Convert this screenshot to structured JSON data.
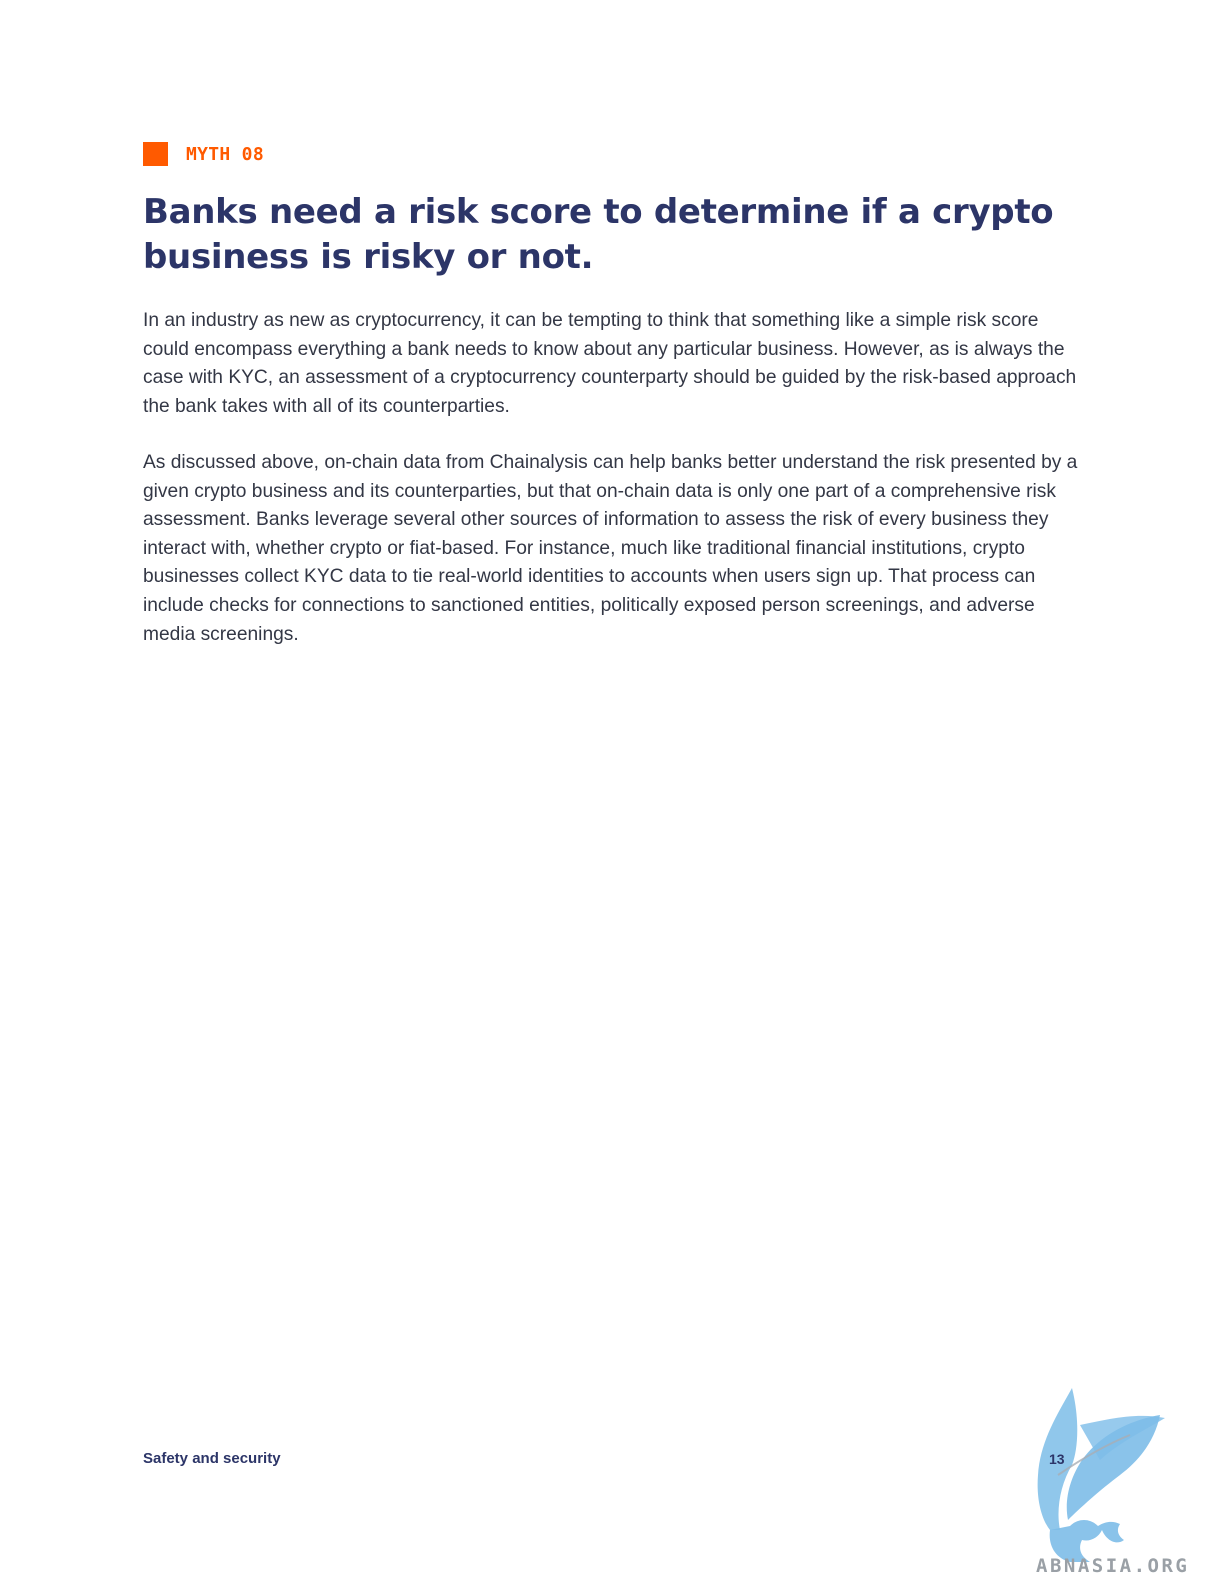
{
  "header": {
    "tag_label": "MYTH 08",
    "title": "Banks need a risk score to determine if a crypto business is risky or not."
  },
  "content": {
    "paragraphs": [
      "In an industry as new as cryptocurrency, it can be tempting to think that something like a simple risk score could encompass everything a bank needs to know about any particular business. However, as is always the case with KYC, an assessment of a cryptocurrency counterparty should be guided by the risk-based approach the bank takes with all of its counterparties.",
      "As discussed above, on-chain data from Chainalysis can help banks better understand the risk presented by a given crypto business and its counterparties, but that on-chain data is only one part of a comprehensive risk assessment. Banks leverage several other sources of information to assess the risk of every business they interact with, whether crypto or fiat-based. For instance, much like traditional financial institutions, crypto businesses collect KYC data to tie real-world identities to accounts when users sign up. That process can include checks for connections to sanctioned entities, politically exposed person screenings, and adverse media screenings."
    ]
  },
  "footer": {
    "section": "Safety and security",
    "page_number": "13"
  },
  "watermark": {
    "text": "ABNASIA.ORG",
    "icon": "griffin-logo-icon"
  },
  "colors": {
    "accent": "#ff5a00",
    "title": "#2c3568",
    "body": "#333745",
    "watermark": "#7dbde8"
  }
}
